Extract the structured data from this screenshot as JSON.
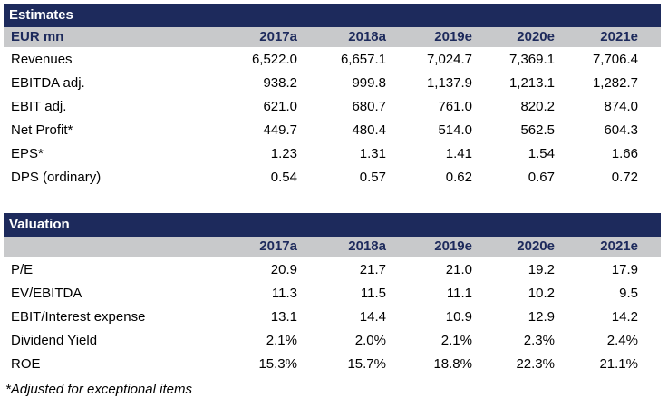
{
  "estimates": {
    "title": "Estimates",
    "unit_label": "EUR mn",
    "columns": [
      "2017a",
      "2018a",
      "2019e",
      "2020e",
      "2021e"
    ],
    "rows": [
      {
        "label": "Revenues",
        "values": [
          "6,522.0",
          "6,657.1",
          "7,024.7",
          "7,369.1",
          "7,706.4"
        ]
      },
      {
        "label": "EBITDA adj.",
        "values": [
          "938.2",
          "999.8",
          "1,137.9",
          "1,213.1",
          "1,282.7"
        ]
      },
      {
        "label": "EBIT adj.",
        "values": [
          "621.0",
          "680.7",
          "761.0",
          "820.2",
          "874.0"
        ]
      },
      {
        "label": "Net Profit*",
        "values": [
          "449.7",
          "480.4",
          "514.0",
          "562.5",
          "604.3"
        ]
      },
      {
        "label": "EPS*",
        "values": [
          "1.23",
          "1.31",
          "1.41",
          "1.54",
          "1.66"
        ]
      },
      {
        "label": "DPS (ordinary)",
        "values": [
          "0.54",
          "0.57",
          "0.62",
          "0.67",
          "0.72"
        ]
      }
    ]
  },
  "valuation": {
    "title": "Valuation",
    "columns": [
      "2017a",
      "2018a",
      "2019e",
      "2020e",
      "2021e"
    ],
    "rows": [
      {
        "label": "P/E",
        "values": [
          "20.9",
          "21.7",
          "21.0",
          "19.2",
          "17.9"
        ]
      },
      {
        "label": "EV/EBITDA",
        "values": [
          "11.3",
          "11.5",
          "11.1",
          "10.2",
          "9.5"
        ]
      },
      {
        "label": "EBIT/Interest expense",
        "values": [
          "13.1",
          "14.4",
          "10.9",
          "12.9",
          "14.2"
        ]
      },
      {
        "label": "Dividend Yield",
        "values": [
          "2.1%",
          "2.0%",
          "2.1%",
          "2.3%",
          "2.4%"
        ]
      },
      {
        "label": "ROE",
        "values": [
          "15.3%",
          "15.7%",
          "18.8%",
          "22.3%",
          "21.1%"
        ]
      }
    ]
  },
  "footnote": "*Adjusted for exceptional items"
}
